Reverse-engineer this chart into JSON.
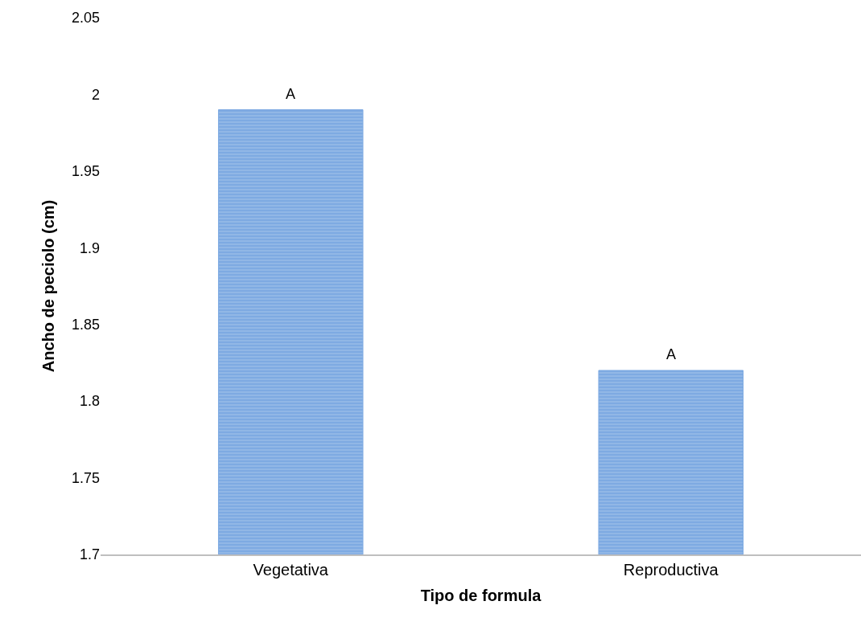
{
  "chart_data": {
    "type": "bar",
    "xlabel": "Tipo de formula",
    "ylabel": "Ancho de peciolo (cm)",
    "categories": [
      "Vegetativa",
      "Reproductiva"
    ],
    "values": [
      1.99,
      1.82
    ],
    "color": "#7eaae2",
    "ylim": [
      1.7,
      2.05
    ],
    "yticks": [
      1.7,
      1.75,
      1.8,
      1.85,
      1.9,
      1.95,
      2,
      2.05
    ],
    "annotations": [
      {
        "text": "A",
        "x": "Vegetativa",
        "y": 1.99
      },
      {
        "text": "A",
        "x": "Reproductiva",
        "y": 1.82
      }
    ],
    "legend": false
  }
}
